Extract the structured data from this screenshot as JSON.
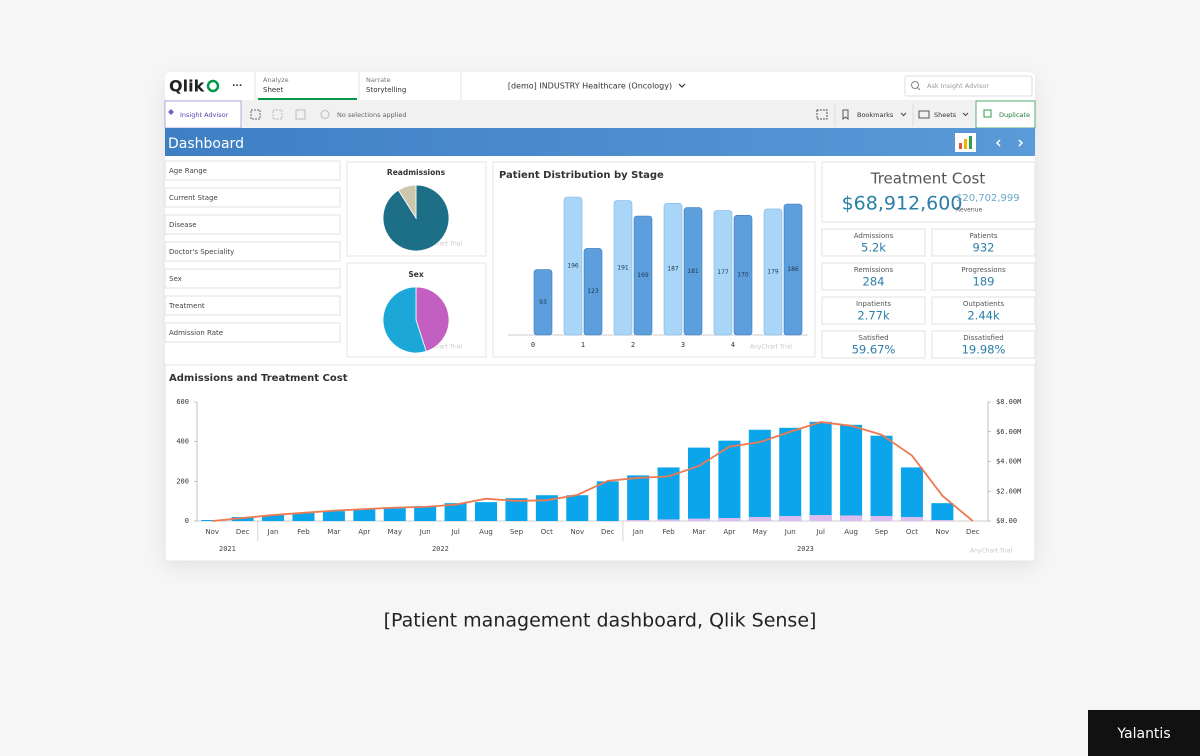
{
  "toolbar": {
    "logo": "Qlik",
    "menu": "···",
    "tabs": [
      {
        "label": "Analyze",
        "value": "Sheet"
      },
      {
        "label": "Narrate",
        "value": "Storytelling"
      }
    ],
    "app_title": "[demo] INDUSTRY Healthcare (Oncology)",
    "search_placeholder": "Ask Insight Advisor"
  },
  "subbar": {
    "insight": "Insight Advisor",
    "selections": "No selections applied",
    "bookmarks": "Bookmarks",
    "sheets": "Sheets",
    "duplicate": "Duplicate"
  },
  "sheet_title": "Dashboard",
  "filters": [
    "Age Range",
    "Current Stage",
    "Disease",
    "Doctor's Speciality",
    "Sex",
    "Treatment",
    "Admission Rate"
  ],
  "treatment_cost": {
    "title": "Treatment Cost",
    "value": "$68,912,600",
    "secondary": "$20,702,999",
    "secondary_label": "Revenue"
  },
  "kpis": [
    {
      "label": "Admissions",
      "value": "5.2k"
    },
    {
      "label": "Patients",
      "value": "932"
    },
    {
      "label": "Remissions",
      "value": "284"
    },
    {
      "label": "Progressions",
      "value": "189"
    },
    {
      "label": "Inpatients",
      "value": "2.77k"
    },
    {
      "label": "Outpatients",
      "value": "2.44k"
    },
    {
      "label": "Satisfied",
      "value": "59.67%"
    },
    {
      "label": "Dissatisfied",
      "value": "19.98%"
    }
  ],
  "chart_data": [
    {
      "type": "pie",
      "title": "Readmissions",
      "values": [
        91,
        9
      ],
      "colors": [
        "#1d6f88",
        "#cdc8ad"
      ],
      "watermark": "AnyChart Trial"
    },
    {
      "type": "pie",
      "title": "Sex",
      "values": [
        45,
        55
      ],
      "colors": [
        "#c35fc0",
        "#1ba7d8"
      ],
      "watermark": "AnyChart Trial"
    },
    {
      "type": "bar",
      "title": "Patient Distribution by Stage",
      "categories": [
        "0",
        "1",
        "2",
        "3",
        "4",
        null
      ],
      "series": [
        {
          "color": "#a9d5f7",
          "values": [
            null,
            196,
            191,
            187,
            177,
            179
          ]
        },
        {
          "color": "#5c9fdc",
          "values": [
            93,
            123,
            169,
            181,
            170,
            186
          ]
        }
      ],
      "data_labels": true,
      "watermark": "AnyChart Trial"
    },
    {
      "type": "combo",
      "title": "Admissions and Treatment Cost",
      "categories": [
        "Nov",
        "Dec",
        "Jan",
        "Feb",
        "Mar",
        "Apr",
        "May",
        "Jun",
        "Jul",
        "Aug",
        "Sep",
        "Oct",
        "Nov",
        "Dec",
        "Jan",
        "Feb",
        "Mar",
        "Apr",
        "May",
        "Jun",
        "Jul",
        "Aug",
        "Sep",
        "Oct",
        "Nov",
        "Dec"
      ],
      "years": [
        "2021",
        "2022",
        "2023"
      ],
      "ylim": [
        0,
        600
      ],
      "yticks": [
        0,
        200,
        400,
        600
      ],
      "y2lim": [
        0,
        8000000
      ],
      "y2ticks": [
        {
          "value": 0,
          "label": "$0.00"
        },
        {
          "value": 2000000,
          "label": "$2.00M"
        },
        {
          "value": 4000000,
          "label": "$4.00M"
        },
        {
          "value": 6000000,
          "label": "$6.00M"
        },
        {
          "value": 8000000,
          "label": "$8.00M"
        }
      ],
      "series": [
        {
          "type": "bar",
          "color": "#0aa5ea",
          "values": [
            5,
            20,
            30,
            40,
            50,
            60,
            65,
            75,
            90,
            95,
            115,
            130,
            130,
            200,
            230,
            270,
            370,
            405,
            460,
            470,
            500,
            485,
            430,
            270,
            90,
            0
          ]
        },
        {
          "type": "bar",
          "color": "#dcbdf2",
          "values": [
            0,
            0,
            0,
            0,
            0,
            0,
            0,
            0,
            0,
            0,
            0,
            0,
            0,
            0,
            5,
            8,
            12,
            15,
            20,
            25,
            30,
            28,
            25,
            20,
            5,
            0
          ]
        },
        {
          "type": "line",
          "axis": "y2",
          "color": "#ee7a52",
          "values": [
            0,
            200000,
            400000,
            550000,
            700000,
            800000,
            900000,
            950000,
            1100000,
            1500000,
            1350000,
            1400000,
            1750000,
            2700000,
            2900000,
            3000000,
            3700000,
            5000000,
            5300000,
            6000000,
            6650000,
            6400000,
            5800000,
            4400000,
            1700000,
            0
          ]
        }
      ],
      "watermark": "AnyChart Trial"
    }
  ],
  "caption": "[Patient management dashboard, Qlik Sense]",
  "brand": "Yalantis"
}
